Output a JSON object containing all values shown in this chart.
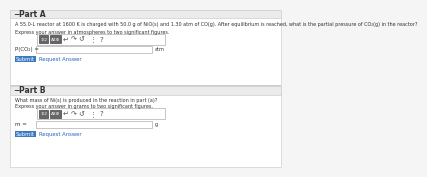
{
  "bg_color": "#f5f5f5",
  "white": "#ffffff",
  "part_a_header": "Part A",
  "part_a_text1": "A 55.0-L reactor at 1600 K is charged with 50.0 g of NiO(s) and 1.30 atm of CO(g). After equilibrium is reached, what is the partial pressure of CO₂(g) in the reactor?",
  "part_a_text2": "Express your answer in atmospheres to two significant figures.",
  "part_a_label": "P(CO₂) =",
  "part_a_unit": "atm",
  "part_b_header": "Part B",
  "part_b_text1": "What mass of Ni(s) is produced in the reaction in part (a)?",
  "part_b_text2": "Express your answer in grams to two significant figures.",
  "part_b_label": "m =",
  "part_b_unit": "g",
  "submit_color": "#3a7abf",
  "submit_text": "Submit",
  "request_text": "Request Answer",
  "input_border": "#bbbbbb",
  "text_color": "#333333",
  "link_color": "#2266bb",
  "header_bg": "#ebebeb",
  "section_border": "#d0d0d0",
  "btn_dark": "#666666",
  "btn_text": "#ffffff",
  "toolbar_border": "#bbbbbb"
}
